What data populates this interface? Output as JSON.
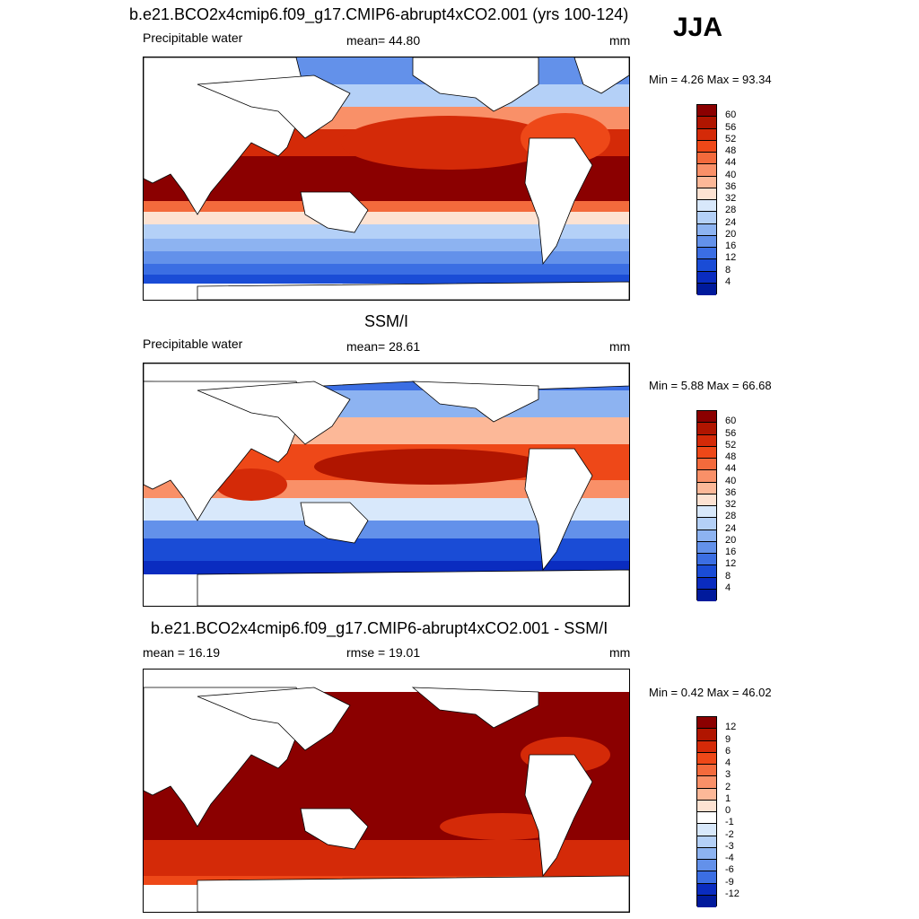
{
  "season": "JJA",
  "panels": [
    {
      "title": "b.e21.BCO2x4cmip6.f09_g17.CMIP6-abrupt4xCO2.001 (yrs 100-124)",
      "left_label": "Precipitable water",
      "mid_label": "mean=  44.80",
      "units": "mm",
      "minmax": "Min =   4.26 Max =  93.34",
      "ticks": [
        "60",
        "56",
        "52",
        "48",
        "44",
        "40",
        "36",
        "32",
        "28",
        "24",
        "20",
        "16",
        "12",
        "8",
        "4"
      ]
    },
    {
      "title": "SSM/I",
      "left_label": "Precipitable water",
      "mid_label": "mean=  28.61",
      "units": "mm",
      "minmax": "Min =   5.88 Max =  66.68",
      "ticks": [
        "60",
        "56",
        "52",
        "48",
        "44",
        "40",
        "36",
        "32",
        "28",
        "24",
        "20",
        "16",
        "12",
        "8",
        "4"
      ]
    },
    {
      "title": "b.e21.BCO2x4cmip6.f09_g17.CMIP6-abrupt4xCO2.001 - SSM/I",
      "left_label": "mean =  16.19",
      "mid_label": "rmse =  19.01",
      "units": "mm",
      "minmax": "Min =   0.42 Max =  46.02",
      "ticks": [
        "12",
        "9",
        "6",
        "4",
        "3",
        "2",
        "1",
        "0",
        "-1",
        "-2",
        "-3",
        "-4",
        "-6",
        "-9",
        "-12"
      ]
    }
  ],
  "colors": {
    "abs_scale": [
      "#8b0000",
      "#b01500",
      "#d42a08",
      "#ee4818",
      "#f36a3c",
      "#f99068",
      "#fcb898",
      "#fde2d2",
      "#d8e8fb",
      "#b4d0f7",
      "#8db3f1",
      "#6391ea",
      "#3b6ee3",
      "#1a4cd6",
      "#0a2cc0",
      "#001a9c"
    ],
    "diff_scale": [
      "#8b0000",
      "#b01500",
      "#d42a08",
      "#ee4818",
      "#f36a3c",
      "#f99068",
      "#fcb898",
      "#fde2d2",
      "#ffffff",
      "#d8e8fb",
      "#b4d0f7",
      "#8db3f1",
      "#6391ea",
      "#3b6ee3",
      "#0a2cc0",
      "#001a9c"
    ],
    "land": "#ffffff"
  }
}
